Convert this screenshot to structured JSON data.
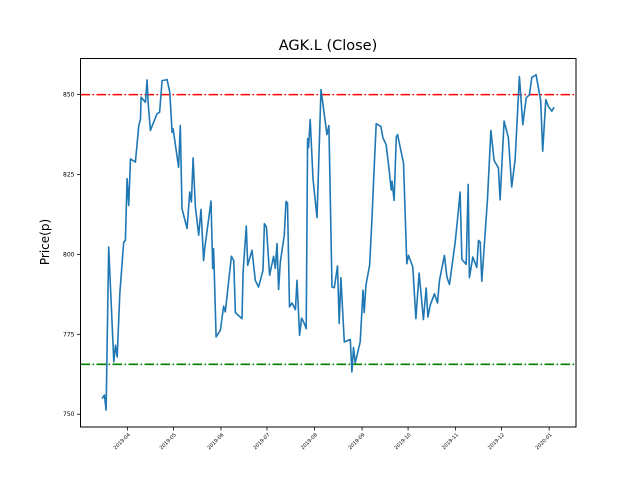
{
  "chart_data": {
    "type": "line",
    "title": "AGK.L (Close)",
    "xlabel": "",
    "ylabel": "Price(p)",
    "x_unit": "days since 2019-04-01",
    "xlim": [
      -30.6,
      292.5
    ],
    "ylim": [
      746.0,
      861.3
    ],
    "grid": false,
    "x_ticks": [
      {
        "value": 0,
        "label": "2019-04"
      },
      {
        "value": 30,
        "label": "2019-05"
      },
      {
        "value": 61,
        "label": "2019-06"
      },
      {
        "value": 91,
        "label": "2019-07"
      },
      {
        "value": 122,
        "label": "2019-08"
      },
      {
        "value": 153,
        "label": "2019-09"
      },
      {
        "value": 183,
        "label": "2019-10"
      },
      {
        "value": 214,
        "label": "2019-11"
      },
      {
        "value": 244,
        "label": "2019-12"
      },
      {
        "value": 275,
        "label": "2020-01"
      }
    ],
    "y_ticks": [
      {
        "value": 750,
        "label": "750"
      },
      {
        "value": 775,
        "label": "775"
      },
      {
        "value": 800,
        "label": "800"
      },
      {
        "value": 825,
        "label": "825"
      },
      {
        "value": 850,
        "label": "850"
      }
    ],
    "hlines": [
      {
        "name": "upper",
        "value": 850,
        "color": "#ff0000"
      },
      {
        "name": "lower",
        "value": 765.6,
        "color": "#008000"
      }
    ],
    "series": [
      {
        "name": "Close",
        "color": "#1f77b4",
        "points": [
          [
            -16.5,
            754.9
          ],
          [
            -15.0,
            756.0
          ],
          [
            -13.9,
            751.3
          ],
          [
            -12.2,
            802.3
          ],
          [
            -8.9,
            766.4
          ],
          [
            -7.8,
            771.6
          ],
          [
            -6.7,
            767.9
          ],
          [
            -5.0,
            787.7
          ],
          [
            -2.4,
            803.9
          ],
          [
            -1.3,
            804.4
          ],
          [
            -0.2,
            823.7
          ],
          [
            0.8,
            815.3
          ],
          [
            2.0,
            829.9
          ],
          [
            5.2,
            828.9
          ],
          [
            7.4,
            840.3
          ],
          [
            8.5,
            842.4
          ],
          [
            8.9,
            849.2
          ],
          [
            11.7,
            847.6
          ],
          [
            12.8,
            854.6
          ],
          [
            13.5,
            847.6
          ],
          [
            15.0,
            838.8
          ],
          [
            19.3,
            844.0
          ],
          [
            21.0,
            844.5
          ],
          [
            22.6,
            854.4
          ],
          [
            25.9,
            854.7
          ],
          [
            27.6,
            850.7
          ],
          [
            29.1,
            838.2
          ],
          [
            29.8,
            839.3
          ],
          [
            33.4,
            827.3
          ],
          [
            34.5,
            840.3
          ],
          [
            35.6,
            814.3
          ],
          [
            38.9,
            808.1
          ],
          [
            40.6,
            819.5
          ],
          [
            41.7,
            816.4
          ],
          [
            42.8,
            830.2
          ],
          [
            44.3,
            814.8
          ],
          [
            46.5,
            806.0
          ],
          [
            48.0,
            814.1
          ],
          [
            49.7,
            798.1
          ],
          [
            50.4,
            801.8
          ],
          [
            54.5,
            816.7
          ],
          [
            55.6,
            795.6
          ],
          [
            56.2,
            801.8
          ],
          [
            57.8,
            774.2
          ],
          [
            60.6,
            776.3
          ],
          [
            62.7,
            783.8
          ],
          [
            63.8,
            782.0
          ],
          [
            67.8,
            799.4
          ],
          [
            69.3,
            798.1
          ],
          [
            70.4,
            781.8
          ],
          [
            74.7,
            779.9
          ],
          [
            75.4,
            794.5
          ],
          [
            77.5,
            808.9
          ],
          [
            78.4,
            796.6
          ],
          [
            81.2,
            801.3
          ],
          [
            83.4,
            791.9
          ],
          [
            85.5,
            789.8
          ],
          [
            88.4,
            795.0
          ],
          [
            89.3,
            809.6
          ],
          [
            90.6,
            808.6
          ],
          [
            92.7,
            793.5
          ],
          [
            95.3,
            799.4
          ],
          [
            96.4,
            795.6
          ],
          [
            97.5,
            803.4
          ],
          [
            98.6,
            789.0
          ],
          [
            99.7,
            797.6
          ],
          [
            102.3,
            806.0
          ],
          [
            103.4,
            816.6
          ],
          [
            104.4,
            816.1
          ],
          [
            105.7,
            783.6
          ],
          [
            107.3,
            784.8
          ],
          [
            109.5,
            782.7
          ],
          [
            110.6,
            791.9
          ],
          [
            112.3,
            774.7
          ],
          [
            113.6,
            780.1
          ],
          [
            115.3,
            778.4
          ],
          [
            116.6,
            776.8
          ],
          [
            117.5,
            836.2
          ],
          [
            118.1,
            833.4
          ],
          [
            119.2,
            842.2
          ],
          [
            121.0,
            823.7
          ],
          [
            123.6,
            811.5
          ],
          [
            126.2,
            851.6
          ],
          [
            129.0,
            841.4
          ],
          [
            130.1,
            837.5
          ],
          [
            131.4,
            840.3
          ],
          [
            133.4,
            789.8
          ],
          [
            134.9,
            789.6
          ],
          [
            137.0,
            796.4
          ],
          [
            138.1,
            778.4
          ],
          [
            139.2,
            792.7
          ],
          [
            141.4,
            772.6
          ],
          [
            145.3,
            773.4
          ],
          [
            146.4,
            763.2
          ],
          [
            147.4,
            770.9
          ],
          [
            148.5,
            766.1
          ],
          [
            151.8,
            772.6
          ],
          [
            153.6,
            788.8
          ],
          [
            154.4,
            781.8
          ],
          [
            155.5,
            790.3
          ],
          [
            157.9,
            796.6
          ],
          [
            159.4,
            810.6
          ],
          [
            160.5,
            823.1
          ],
          [
            162.2,
            840.9
          ],
          [
            165.3,
            840.0
          ],
          [
            166.6,
            836.5
          ],
          [
            168.7,
            834.4
          ],
          [
            170.7,
            826.3
          ],
          [
            172.0,
            820.2
          ],
          [
            172.5,
            822.9
          ],
          [
            173.9,
            816.9
          ],
          [
            175.3,
            836.7
          ],
          [
            176.1,
            837.5
          ],
          [
            180.0,
            828.6
          ],
          [
            182.2,
            797.1
          ],
          [
            183.3,
            799.7
          ],
          [
            186.1,
            796.1
          ],
          [
            188.1,
            779.9
          ],
          [
            190.2,
            794.2
          ],
          [
            193.0,
            779.6
          ],
          [
            194.8,
            789.5
          ],
          [
            195.9,
            780.4
          ],
          [
            197.4,
            784.1
          ],
          [
            200.2,
            787.7
          ],
          [
            202.2,
            784.8
          ],
          [
            203.5,
            791.9
          ],
          [
            206.7,
            799.7
          ],
          [
            208.3,
            792.9
          ],
          [
            210.0,
            790.6
          ],
          [
            213.7,
            803.9
          ],
          [
            215.2,
            810.9
          ],
          [
            216.9,
            819.5
          ],
          [
            218.1,
            798.4
          ],
          [
            220.9,
            796.9
          ],
          [
            222.2,
            821.9
          ],
          [
            223.0,
            792.7
          ],
          [
            225.2,
            799.2
          ],
          [
            227.8,
            795.9
          ],
          [
            228.9,
            804.4
          ],
          [
            230.0,
            803.9
          ],
          [
            231.1,
            791.6
          ],
          [
            234.7,
            816.9
          ],
          [
            237.0,
            838.8
          ],
          [
            239.1,
            829.4
          ],
          [
            241.9,
            827.1
          ],
          [
            243.0,
            817.1
          ],
          [
            245.6,
            841.7
          ],
          [
            248.4,
            836.5
          ],
          [
            250.6,
            821.1
          ],
          [
            252.8,
            829.6
          ],
          [
            255.6,
            855.7
          ],
          [
            257.8,
            840.6
          ],
          [
            260.0,
            849.0
          ],
          [
            262.1,
            849.9
          ],
          [
            263.7,
            855.4
          ],
          [
            266.5,
            856.2
          ],
          [
            269.5,
            848.1
          ],
          [
            270.8,
            832.3
          ],
          [
            272.8,
            848.4
          ],
          [
            274.5,
            846.3
          ],
          [
            276.7,
            844.8
          ],
          [
            278.2,
            846.1
          ]
        ]
      }
    ]
  }
}
